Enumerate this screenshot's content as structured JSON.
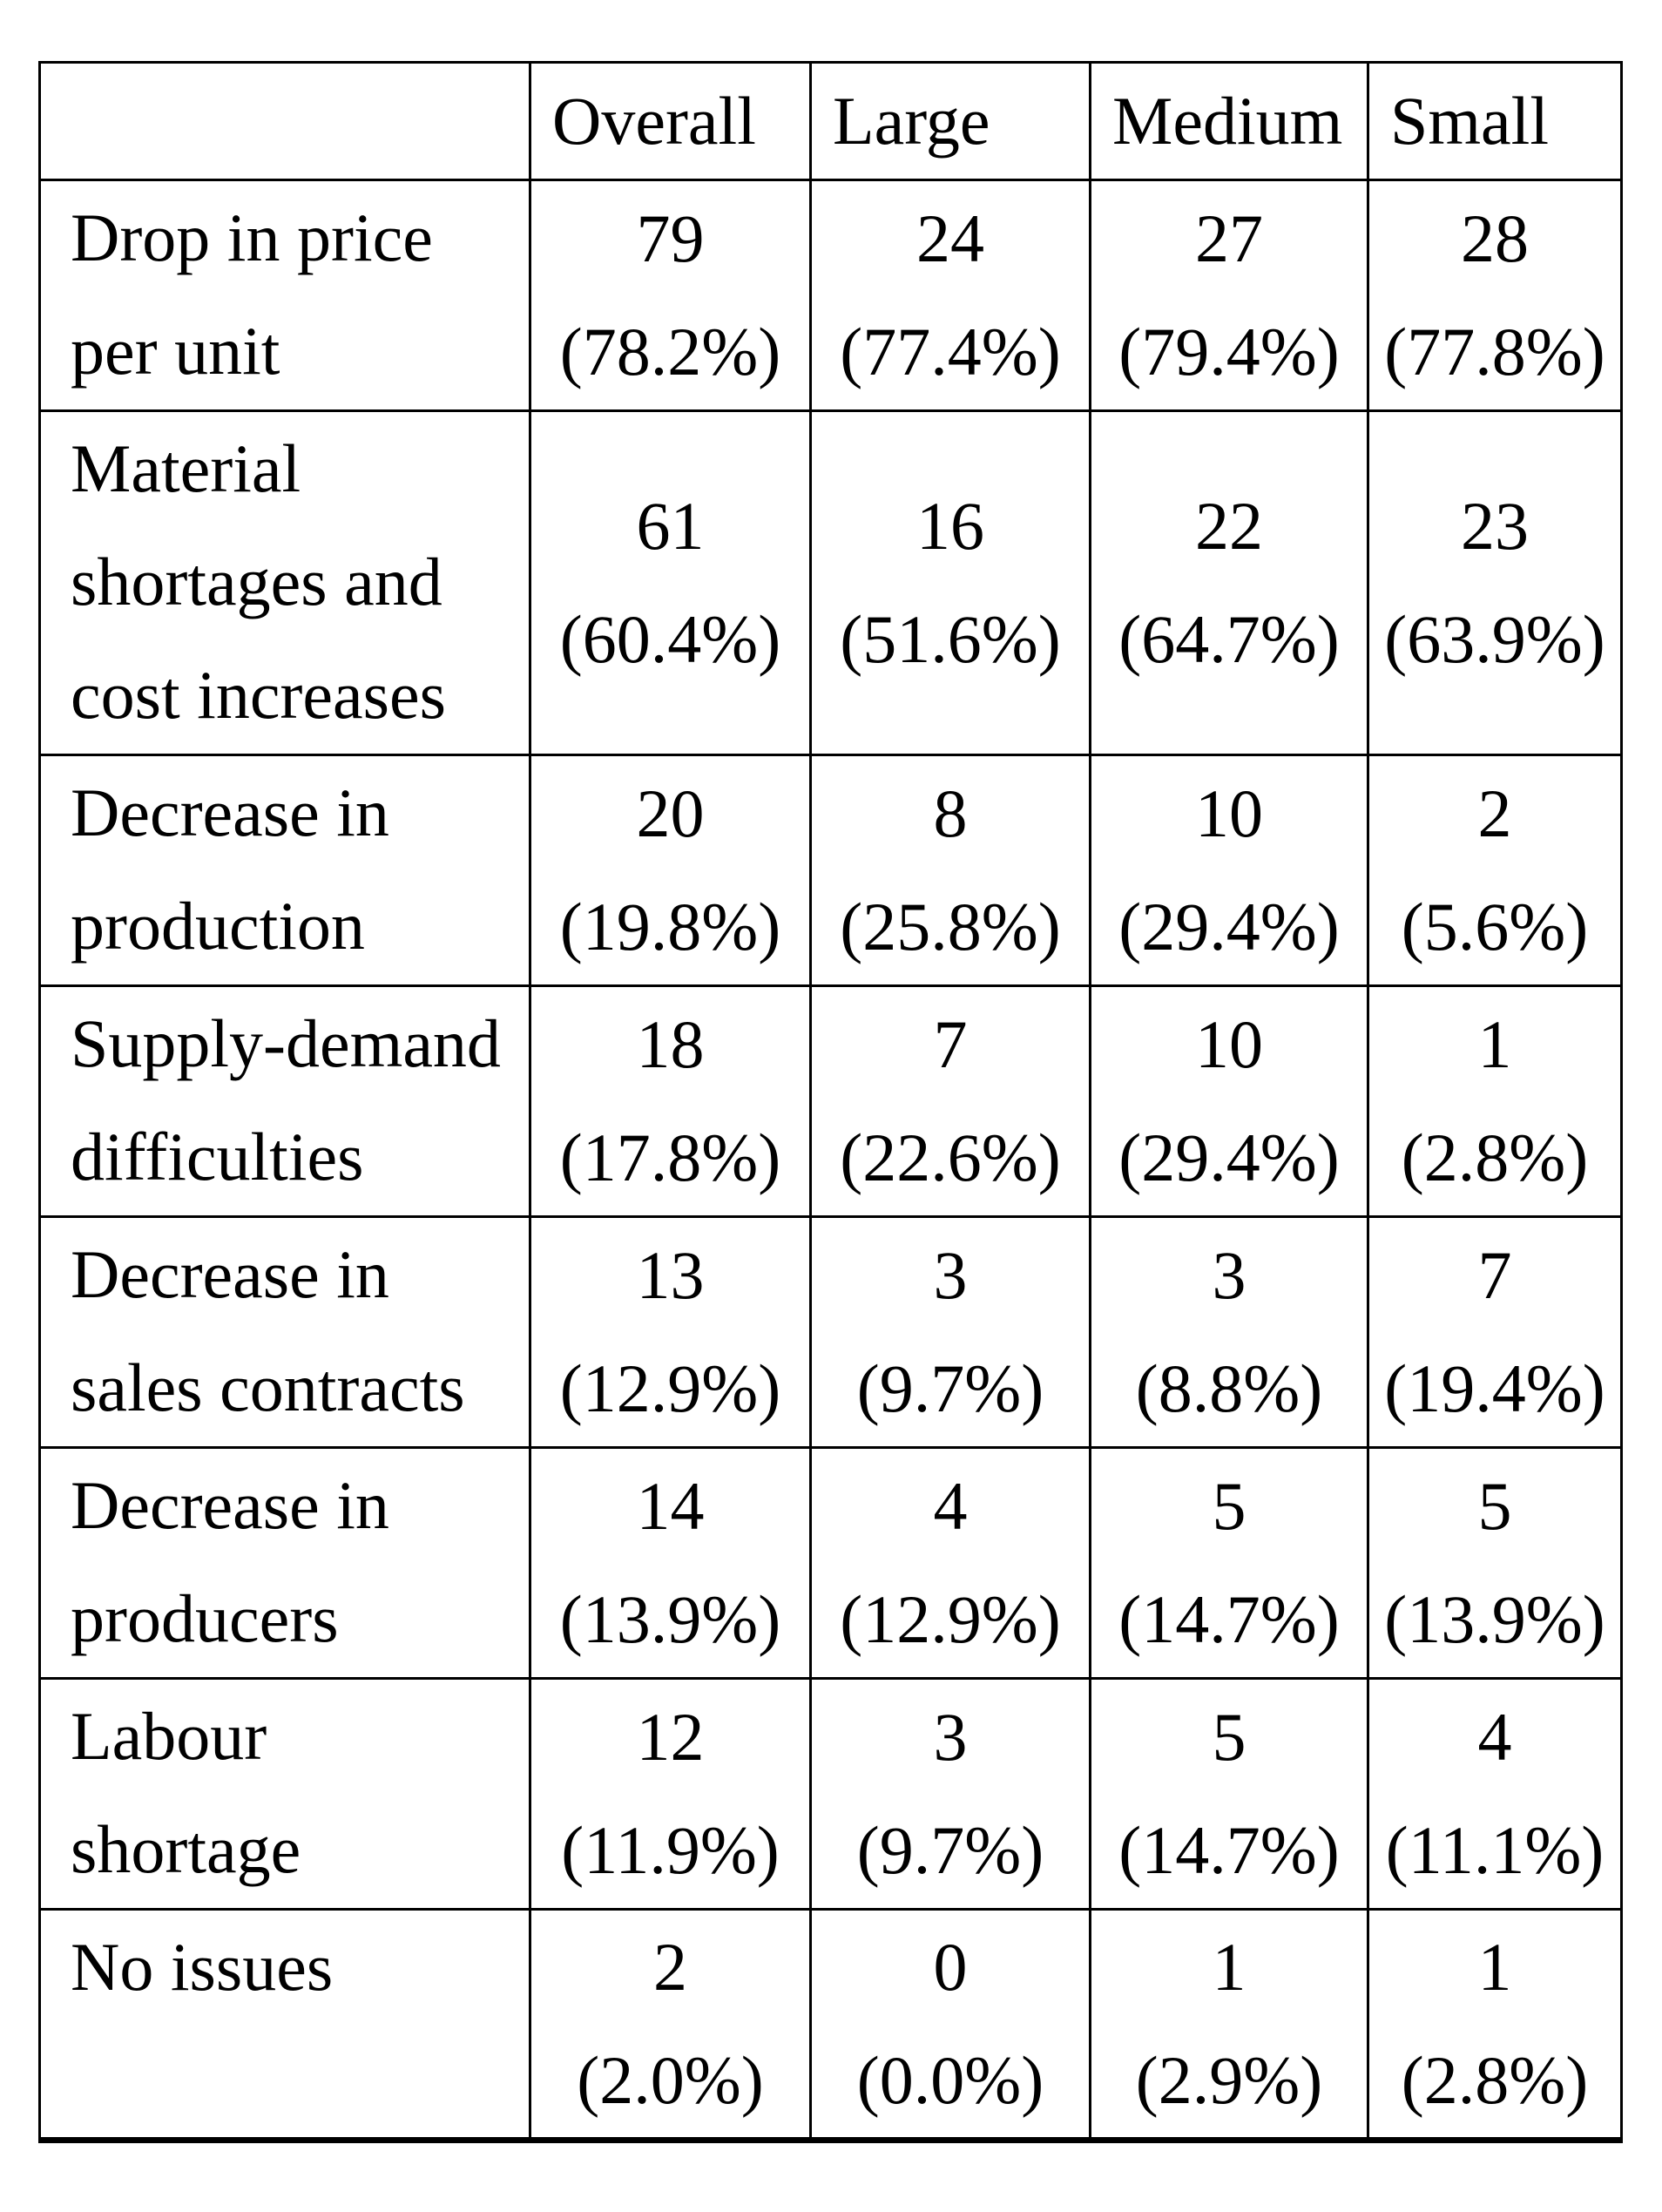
{
  "colors": {
    "background": "#ffffff",
    "text": "#000000",
    "border": "#000000"
  },
  "table": {
    "header": [
      "",
      "Overall",
      "Large",
      "Medium",
      "Small"
    ],
    "rows": [
      {
        "label_lines": [
          "Drop in price",
          "per unit"
        ],
        "cells": [
          {
            "count": "79",
            "pct": "(78.2%)"
          },
          {
            "count": "24",
            "pct": "(77.4%)"
          },
          {
            "count": "27",
            "pct": "(79.4%)"
          },
          {
            "count": "28",
            "pct": "(77.8%)"
          }
        ]
      },
      {
        "label_lines": [
          "Material",
          "shortages and",
          "cost increases"
        ],
        "cells": [
          {
            "count": "61",
            "pct": "(60.4%)"
          },
          {
            "count": "16",
            "pct": "(51.6%)"
          },
          {
            "count": "22",
            "pct": "(64.7%)"
          },
          {
            "count": "23",
            "pct": "(63.9%)"
          }
        ]
      },
      {
        "label_lines": [
          "Decrease in",
          "production"
        ],
        "cells": [
          {
            "count": "20",
            "pct": "(19.8%)"
          },
          {
            "count": "8",
            "pct": "(25.8%)"
          },
          {
            "count": "10",
            "pct": "(29.4%)"
          },
          {
            "count": "2",
            "pct": "(5.6%)"
          }
        ]
      },
      {
        "label_lines": [
          "Supply-demand",
          "difficulties"
        ],
        "cells": [
          {
            "count": "18",
            "pct": "(17.8%)"
          },
          {
            "count": "7",
            "pct": "(22.6%)"
          },
          {
            "count": "10",
            "pct": "(29.4%)"
          },
          {
            "count": "1",
            "pct": "(2.8%)"
          }
        ]
      },
      {
        "label_lines": [
          "Decrease in",
          "sales contracts"
        ],
        "cells": [
          {
            "count": "13",
            "pct": "(12.9%)"
          },
          {
            "count": "3",
            "pct": "(9.7%)"
          },
          {
            "count": "3",
            "pct": "(8.8%)"
          },
          {
            "count": "7",
            "pct": "(19.4%)"
          }
        ]
      },
      {
        "label_lines": [
          "Decrease in",
          "producers"
        ],
        "cells": [
          {
            "count": "14",
            "pct": "(13.9%)"
          },
          {
            "count": "4",
            "pct": "(12.9%)"
          },
          {
            "count": "5",
            "pct": "(14.7%)"
          },
          {
            "count": "5",
            "pct": "(13.9%)"
          }
        ]
      },
      {
        "label_lines": [
          "Labour",
          "shortage"
        ],
        "cells": [
          {
            "count": "12",
            "pct": "(11.9%)"
          },
          {
            "count": "3",
            "pct": "(9.7%)"
          },
          {
            "count": "5",
            "pct": "(14.7%)"
          },
          {
            "count": "4",
            "pct": "(11.1%)"
          }
        ]
      },
      {
        "label_lines": [
          "No issues"
        ],
        "cells": [
          {
            "count": "2",
            "pct": "(2.0%)"
          },
          {
            "count": "0",
            "pct": "(0.0%)"
          },
          {
            "count": "1",
            "pct": "(2.9%)"
          },
          {
            "count": "1",
            "pct": "(2.8%)"
          }
        ]
      }
    ]
  }
}
